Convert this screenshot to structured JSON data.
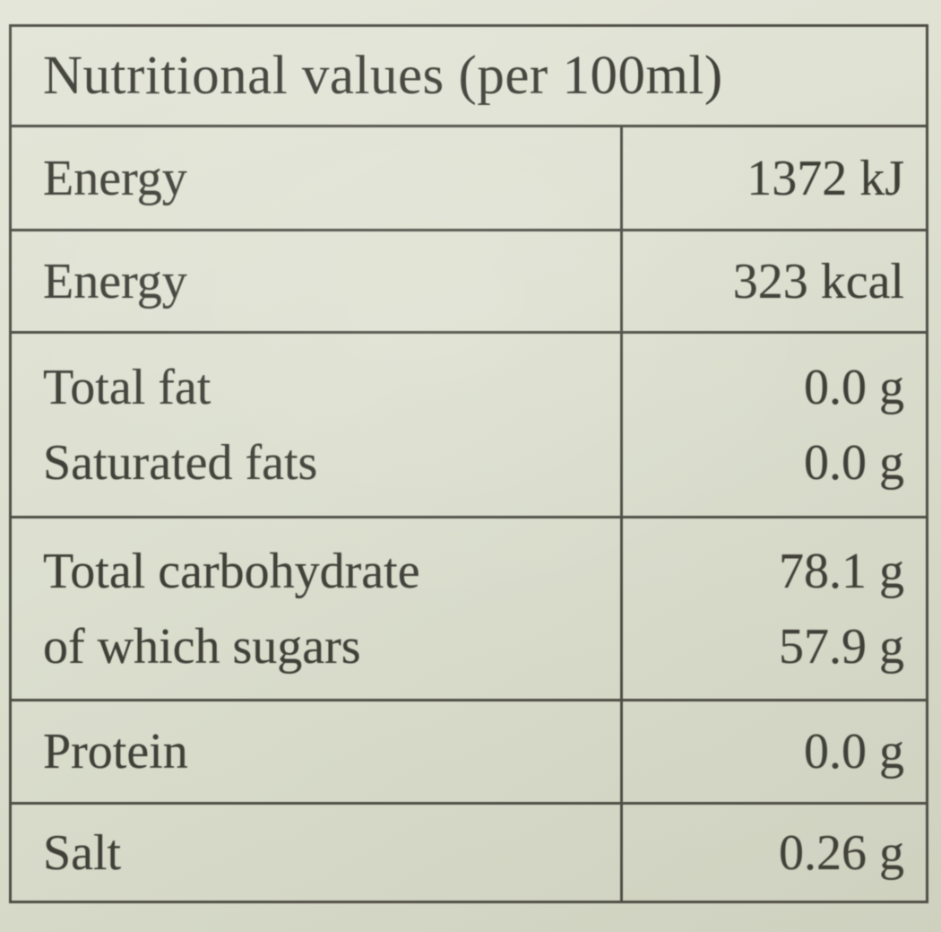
{
  "label": {
    "title": "Nutritional values (per 100ml)",
    "rows": [
      {
        "lines": [
          {
            "name": "Energy",
            "value": "1372 kJ"
          }
        ]
      },
      {
        "lines": [
          {
            "name": "Energy",
            "value": "323 kcal"
          }
        ]
      },
      {
        "lines": [
          {
            "name": "Total fat",
            "value": "0.0 g"
          },
          {
            "name": "Saturated fats",
            "value": "0.0 g"
          }
        ]
      },
      {
        "lines": [
          {
            "name": "Total carbohydrate",
            "value": "78.1 g"
          },
          {
            "name": "of which sugars",
            "value": "57.9 g"
          }
        ]
      },
      {
        "lines": [
          {
            "name": "Protein",
            "value": "0.0 g"
          }
        ]
      },
      {
        "lines": [
          {
            "name": "Salt",
            "value": "0.26 g"
          }
        ]
      }
    ],
    "colors": {
      "background": "#dde0d0",
      "border": "#4d4d45",
      "text": "#3f3f38"
    }
  }
}
